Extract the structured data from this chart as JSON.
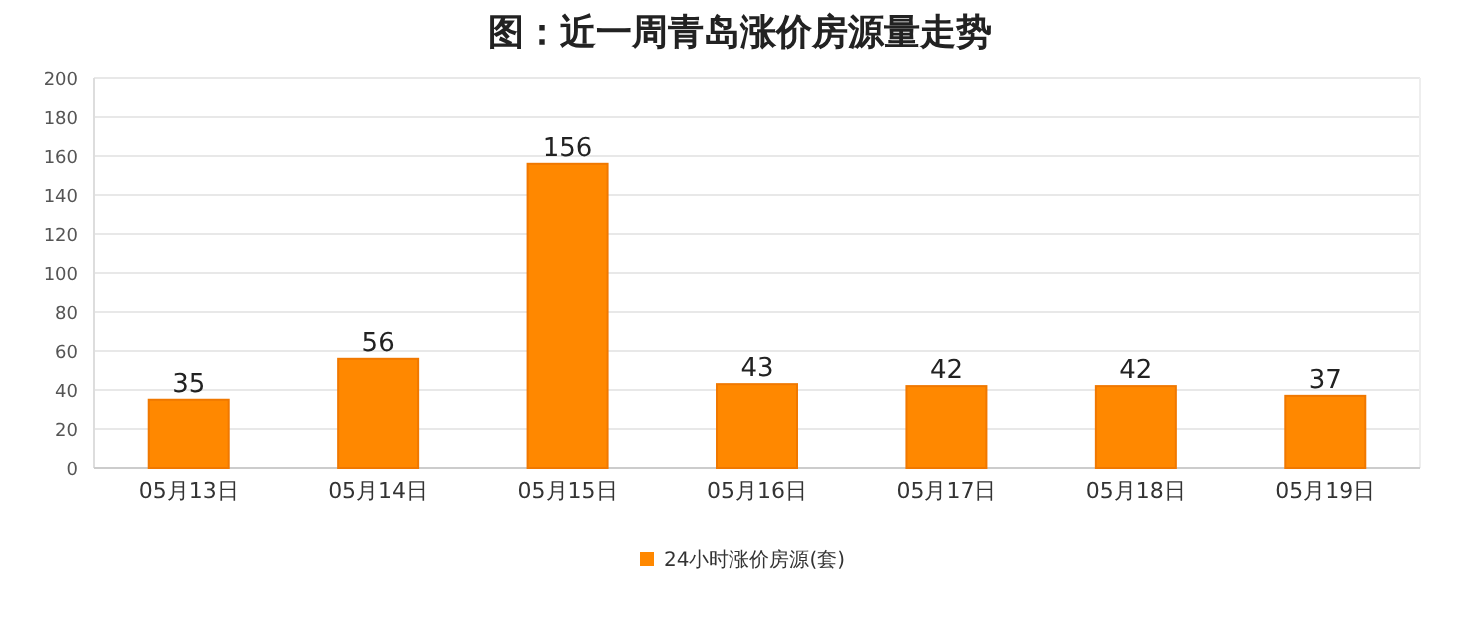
{
  "chart_data": {
    "type": "bar",
    "title": "图：近一周青岛涨价房源量走势",
    "categories": [
      "05月13日",
      "05月14日",
      "05月15日",
      "05月16日",
      "05月17日",
      "05月18日",
      "05月19日"
    ],
    "series": [
      {
        "name": "24小时涨价房源(套)",
        "color": "#ff8800",
        "values": [
          35,
          56,
          156,
          43,
          42,
          42,
          37
        ]
      }
    ],
    "ylim": [
      0,
      200
    ],
    "yticks": [
      0,
      20,
      40,
      60,
      80,
      100,
      120,
      140,
      160,
      180,
      200
    ],
    "grid": "y",
    "legend": "bottom",
    "data_labels": true
  }
}
